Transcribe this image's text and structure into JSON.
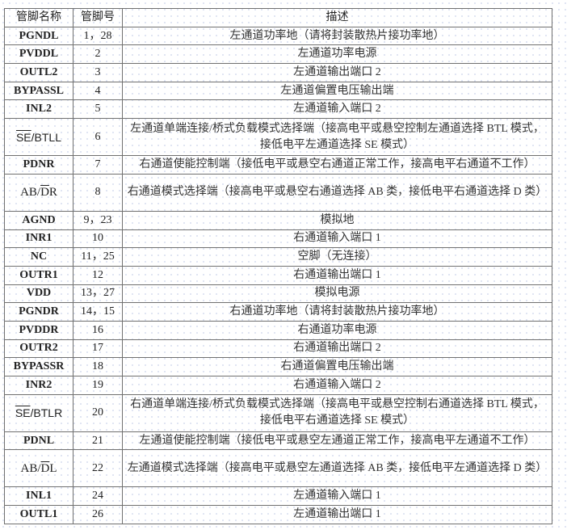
{
  "header": {
    "name": "管脚名称",
    "number": "管脚号",
    "description": "描述"
  },
  "rows": [
    {
      "pre": "PGNDL",
      "over": "",
      "post": "",
      "num": "1，28",
      "desc": "左通道功率地（请将封装散热片接功率地）",
      "desc2": ""
    },
    {
      "pre": "PVDDL",
      "over": "",
      "post": "",
      "num": "2",
      "desc": "左通道功率电源",
      "desc2": ""
    },
    {
      "pre": "OUTL2",
      "over": "",
      "post": "",
      "num": "3",
      "desc": "左通道输出端口 2",
      "desc2": ""
    },
    {
      "pre": "BYPASSL",
      "over": "",
      "post": "",
      "num": "4",
      "desc": "左通道偏置电压输出端",
      "desc2": ""
    },
    {
      "pre": "INL2",
      "over": "",
      "post": "",
      "num": "5",
      "desc": "左通道输入端口 2",
      "desc2": ""
    },
    {
      "pre": "",
      "over": "SE",
      "post": "/BTLL",
      "num": "6",
      "desc": "左通道单端连接/桥式负载模式选择端（接高电平或悬空控制左通道选择 BTL 模式，",
      "desc2": "接低电平左通道选择 SE 模式）"
    },
    {
      "pre": "PDNR",
      "over": "",
      "post": "",
      "num": "7",
      "desc": "右通道使能控制端（接低电平或悬空右通道正常工作，接高电平右通道不工作）",
      "desc2": ""
    },
    {
      "pre": "AB/",
      "over": "D",
      "post": "R",
      "num": "8",
      "desc": "右通道模式选择端（接高电平或悬空右通道选择 AB 类，接低电平右通道选择 D 类）",
      "desc2": ""
    },
    {
      "pre": "AGND",
      "over": "",
      "post": "",
      "num": "9，23",
      "desc": "模拟地",
      "desc2": ""
    },
    {
      "pre": "INR1",
      "over": "",
      "post": "",
      "num": "10",
      "desc": "右通道输入端口 1",
      "desc2": ""
    },
    {
      "pre": "NC",
      "over": "",
      "post": "",
      "num": "11，25",
      "desc": "空脚（无连接）",
      "desc2": ""
    },
    {
      "pre": "OUTR1",
      "over": "",
      "post": "",
      "num": "12",
      "desc": "右通道输出端口 1",
      "desc2": ""
    },
    {
      "pre": "VDD",
      "over": "",
      "post": "",
      "num": "13，27",
      "desc": "模拟电源",
      "desc2": ""
    },
    {
      "pre": "PGNDR",
      "over": "",
      "post": "",
      "num": "14，15",
      "desc": "右通道功率地（请将封装散热片接功率地）",
      "desc2": ""
    },
    {
      "pre": "PVDDR",
      "over": "",
      "post": "",
      "num": "16",
      "desc": "右通道功率电源",
      "desc2": ""
    },
    {
      "pre": "OUTR2",
      "over": "",
      "post": "",
      "num": "17",
      "desc": "右通道输出端口 2",
      "desc2": ""
    },
    {
      "pre": "BYPASSR",
      "over": "",
      "post": "",
      "num": "18",
      "desc": "右通道偏置电压输出端",
      "desc2": ""
    },
    {
      "pre": "INR2",
      "over": "",
      "post": "",
      "num": "19",
      "desc": "右通道输入端口 2",
      "desc2": ""
    },
    {
      "pre": "",
      "over": "SE",
      "post": "/BTLR",
      "num": "20",
      "desc": "右通道单端连接/桥式负载模式选择端（接高电平或悬空控制右通道选择 BTL 模式，",
      "desc2": "接低电平右通道选择 SE 模式）"
    },
    {
      "pre": "PDNL",
      "over": "",
      "post": "",
      "num": "21",
      "desc": "左通道使能控制端（接低电平或悬空左通道正常工作，接高电平左通道不工作）",
      "desc2": ""
    },
    {
      "pre": "AB/",
      "over": "D",
      "post": "L",
      "num": "22",
      "desc": "左通道模式选择端（接高电平或悬空左通道选择 AB 类，接低电平左通道选择 D 类）",
      "desc2": ""
    },
    {
      "pre": "INL1",
      "over": "",
      "post": "",
      "num": "24",
      "desc": "左通道输入端口 1",
      "desc2": ""
    },
    {
      "pre": "OUTL1",
      "over": "",
      "post": "",
      "num": "26",
      "desc": "左通道输出端口 1",
      "desc2": ""
    }
  ]
}
